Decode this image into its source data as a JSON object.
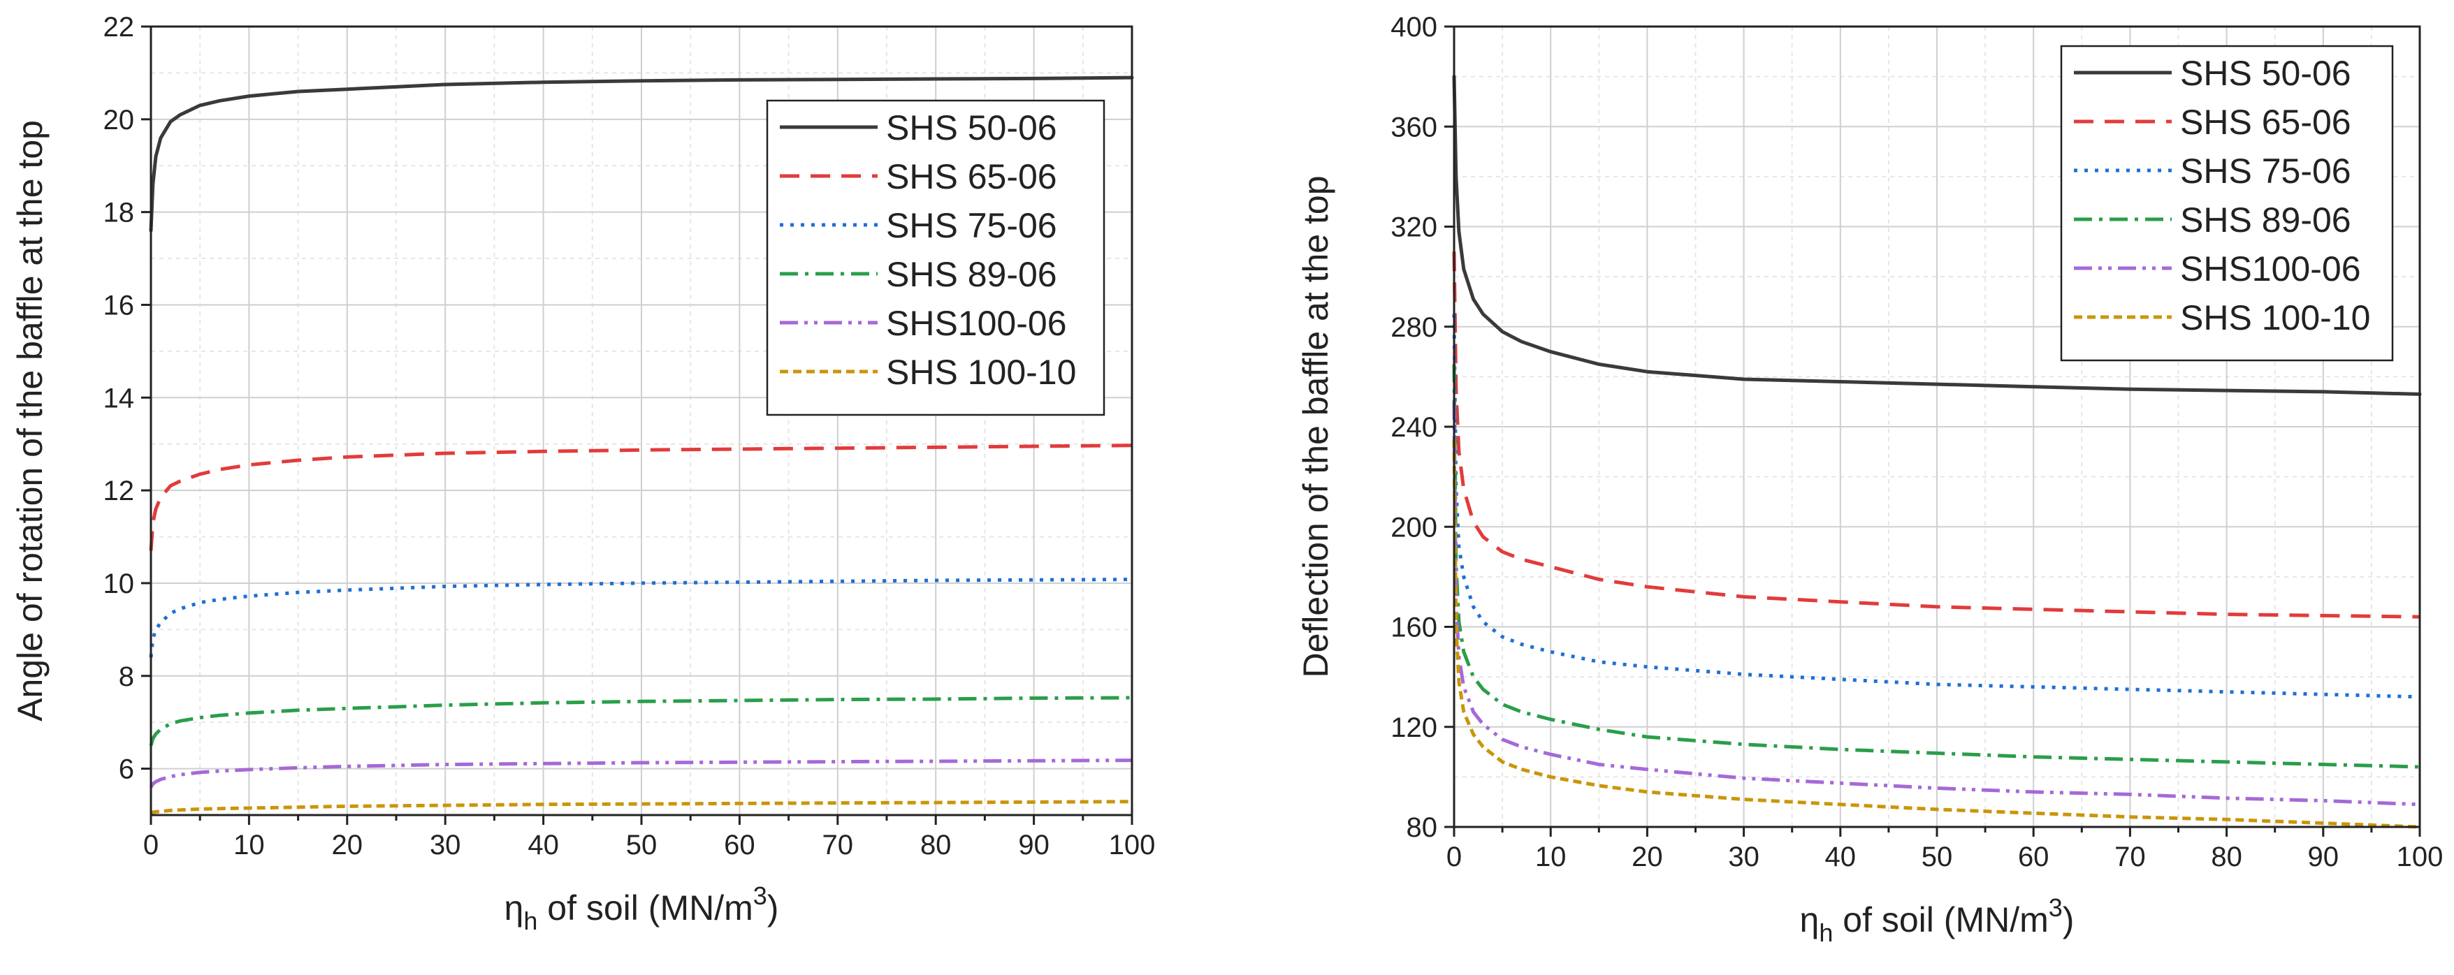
{
  "chart_data": [
    {
      "type": "line",
      "xlabel_main": "η",
      "xlabel_sub": "h",
      "xlabel_rest": " of soil (MN/m",
      "xlabel_sup": "3",
      "xlabel_close": ")",
      "ylabel": "Angle of rotation of the baffle at the top",
      "xlim": [
        0,
        100
      ],
      "ylim": [
        5,
        22
      ],
      "xticks": [
        "0",
        "10",
        "20",
        "30",
        "40",
        "50",
        "60",
        "70",
        "80",
        "90",
        "100"
      ],
      "yticks": [
        "6",
        "8",
        "10",
        "12",
        "14",
        "16",
        "18",
        "20",
        "22"
      ],
      "xtick_values": [
        0,
        10,
        20,
        30,
        40,
        50,
        60,
        70,
        80,
        90,
        100
      ],
      "ytick_values": [
        6,
        8,
        10,
        12,
        14,
        16,
        18,
        20,
        22
      ],
      "legend_position": "upper-right",
      "series": [
        {
          "name": "SHS 50-06",
          "color": "#3a3a3a",
          "dash": "solid",
          "x": [
            0,
            0.2,
            0.5,
            1,
            2,
            3,
            5,
            7,
            10,
            15,
            20,
            30,
            40,
            50,
            60,
            70,
            80,
            90,
            100
          ],
          "y": [
            17.6,
            18.6,
            19.2,
            19.6,
            19.95,
            20.1,
            20.3,
            20.4,
            20.5,
            20.6,
            20.65,
            20.75,
            20.8,
            20.83,
            20.85,
            20.86,
            20.87,
            20.88,
            20.9
          ]
        },
        {
          "name": "SHS 65-06",
          "color": "#e23b3b",
          "dash": "long-dash",
          "x": [
            0,
            0.2,
            0.5,
            1,
            2,
            3,
            5,
            7,
            10,
            15,
            20,
            30,
            40,
            50,
            60,
            70,
            80,
            90,
            100
          ],
          "y": [
            10.7,
            11.3,
            11.6,
            11.85,
            12.1,
            12.2,
            12.35,
            12.45,
            12.55,
            12.65,
            12.72,
            12.8,
            12.84,
            12.87,
            12.89,
            12.91,
            12.93,
            12.95,
            12.97
          ]
        },
        {
          "name": "SHS 75-06",
          "color": "#1f6fd6",
          "dash": "dot",
          "x": [
            0,
            0.2,
            0.5,
            1,
            2,
            3,
            5,
            7,
            10,
            15,
            20,
            30,
            40,
            50,
            60,
            70,
            80,
            90,
            100
          ],
          "y": [
            8.4,
            8.8,
            9.0,
            9.15,
            9.35,
            9.45,
            9.58,
            9.65,
            9.72,
            9.8,
            9.85,
            9.93,
            9.97,
            10.0,
            10.02,
            10.04,
            10.06,
            10.07,
            10.08
          ]
        },
        {
          "name": "SHS 89-06",
          "color": "#2a9e4a",
          "dash": "dash-dot",
          "x": [
            0,
            0.2,
            0.5,
            1,
            2,
            3,
            5,
            7,
            10,
            15,
            20,
            30,
            40,
            50,
            60,
            70,
            80,
            90,
            100
          ],
          "y": [
            6.5,
            6.65,
            6.75,
            6.85,
            6.97,
            7.03,
            7.1,
            7.15,
            7.2,
            7.26,
            7.3,
            7.37,
            7.42,
            7.45,
            7.47,
            7.49,
            7.5,
            7.52,
            7.53
          ]
        },
        {
          "name": "SHS100-06",
          "color": "#a569d8",
          "dash": "dash-dot-dot",
          "x": [
            0,
            0.2,
            0.5,
            1,
            2,
            3,
            5,
            7,
            10,
            15,
            20,
            30,
            40,
            50,
            60,
            70,
            80,
            90,
            100
          ],
          "y": [
            5.6,
            5.67,
            5.72,
            5.77,
            5.83,
            5.87,
            5.92,
            5.95,
            5.98,
            6.02,
            6.05,
            6.09,
            6.11,
            6.13,
            6.14,
            6.15,
            6.16,
            6.17,
            6.18
          ]
        },
        {
          "name": "SHS 100-10",
          "color": "#c9960a",
          "dash": "short-dash",
          "x": [
            0,
            0.2,
            0.5,
            1,
            2,
            3,
            5,
            7,
            10,
            15,
            20,
            30,
            40,
            50,
            60,
            70,
            80,
            90,
            100
          ],
          "y": [
            5.05,
            5.06,
            5.07,
            5.08,
            5.1,
            5.11,
            5.13,
            5.14,
            5.15,
            5.17,
            5.19,
            5.21,
            5.23,
            5.24,
            5.25,
            5.26,
            5.27,
            5.28,
            5.29
          ]
        }
      ]
    },
    {
      "type": "line",
      "xlabel_main": "η",
      "xlabel_sub": "h",
      "xlabel_rest": " of soil (MN/m",
      "xlabel_sup": "3",
      "xlabel_close": ")",
      "ylabel": "Deflection of the baffle at the top",
      "xlim": [
        0,
        100
      ],
      "ylim": [
        80,
        400
      ],
      "xticks": [
        "0",
        "10",
        "20",
        "30",
        "40",
        "50",
        "60",
        "70",
        "80",
        "90",
        "100"
      ],
      "yticks": [
        "80",
        "120",
        "160",
        "200",
        "240",
        "280",
        "320",
        "360",
        "400"
      ],
      "xtick_values": [
        0,
        10,
        20,
        30,
        40,
        50,
        60,
        70,
        80,
        90,
        100
      ],
      "ytick_values": [
        80,
        120,
        160,
        200,
        240,
        280,
        320,
        360,
        400
      ],
      "legend_position": "upper-right",
      "series": [
        {
          "name": "SHS 50-06",
          "color": "#3a3a3a",
          "dash": "solid",
          "x": [
            0,
            0.2,
            0.5,
            1,
            2,
            3,
            5,
            7,
            10,
            15,
            20,
            30,
            40,
            50,
            60,
            70,
            80,
            90,
            100
          ],
          "y": [
            380,
            340,
            318,
            303,
            291,
            285,
            278,
            274,
            270,
            265,
            262,
            259,
            258,
            257,
            256,
            255,
            254.5,
            254,
            253
          ]
        },
        {
          "name": "SHS 65-06",
          "color": "#e23b3b",
          "dash": "long-dash",
          "x": [
            0,
            0.2,
            0.5,
            1,
            2,
            3,
            5,
            7,
            10,
            15,
            20,
            30,
            40,
            50,
            60,
            70,
            80,
            90,
            100
          ],
          "y": [
            310,
            255,
            230,
            215,
            202,
            196,
            190,
            187,
            184,
            179,
            176,
            172,
            170,
            168,
            167,
            166,
            165,
            164.5,
            164
          ]
        },
        {
          "name": "SHS 75-06",
          "color": "#1f6fd6",
          "dash": "dot",
          "x": [
            0,
            0.2,
            0.5,
            1,
            2,
            3,
            5,
            7,
            10,
            15,
            20,
            30,
            40,
            50,
            60,
            70,
            80,
            90,
            100
          ],
          "y": [
            285,
            215,
            192,
            180,
            168,
            162,
            156,
            153,
            150,
            146,
            144,
            141,
            139,
            137,
            136,
            135,
            134,
            133,
            132
          ]
        },
        {
          "name": "SHS 89-06",
          "color": "#2a9e4a",
          "dash": "dash-dot",
          "x": [
            0,
            0.2,
            0.5,
            1,
            2,
            3,
            5,
            7,
            10,
            15,
            20,
            30,
            40,
            50,
            60,
            70,
            80,
            90,
            100
          ],
          "y": [
            265,
            185,
            162,
            150,
            140,
            135,
            129,
            126,
            123,
            119,
            116,
            113,
            111,
            109.5,
            108,
            107,
            106,
            105,
            104
          ]
        },
        {
          "name": "SHS100-06",
          "color": "#a569d8",
          "dash": "dash-dot-dot",
          "x": [
            0,
            0.2,
            0.5,
            1,
            2,
            3,
            5,
            7,
            10,
            15,
            20,
            30,
            40,
            50,
            60,
            70,
            80,
            90,
            100
          ],
          "y": [
            250,
            170,
            148,
            136,
            126,
            121,
            115,
            112,
            109,
            105,
            103,
            99.5,
            97.5,
            95.5,
            94,
            93,
            91.5,
            90.5,
            89
          ]
        },
        {
          "name": "SHS 100-10",
          "color": "#c9960a",
          "dash": "short-dash",
          "x": [
            0,
            0.2,
            0.5,
            1,
            2,
            3,
            5,
            7,
            10,
            15,
            20,
            30,
            40,
            50,
            60,
            70,
            80,
            90,
            100
          ],
          "y": [
            235,
            160,
            138,
            126,
            117,
            112,
            106,
            103,
            100,
            96.5,
            94,
            91,
            89,
            87,
            85.5,
            84,
            83,
            81.5,
            80
          ]
        }
      ]
    }
  ]
}
